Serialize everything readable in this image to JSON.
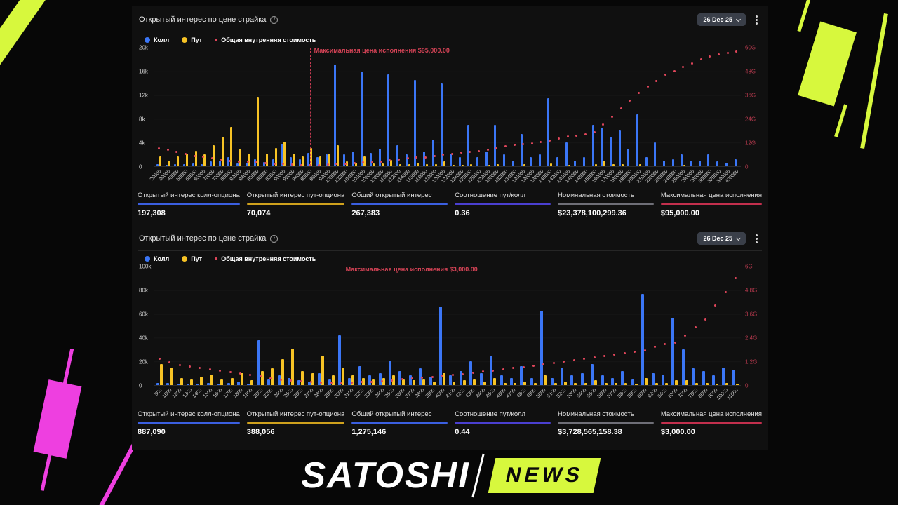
{
  "icons": {
    "info": "i"
  },
  "colors": {
    "call": "#3b76f6",
    "put": "#f7c325",
    "intrinsic": "#e0465a",
    "accent_green": "#d7f83d",
    "accent_magenta": "#ee3fe0"
  },
  "logo": {
    "brand": "SATOSHI",
    "badge": "NEWS"
  },
  "panels": [
    {
      "title": "Открытый интерес по цене страйка",
      "date_selector": "26 Dec 25",
      "legend": [
        {
          "label": "Колл",
          "color": "#3b76f6",
          "icon": "call-dot-icon",
          "shape": "dot"
        },
        {
          "label": "Пут",
          "color": "#f7c325",
          "icon": "put-dot-icon",
          "shape": "dot"
        },
        {
          "label": "Общая внутренняя стоимость",
          "color": "#e0465a",
          "icon": "intrinsic-dot-icon",
          "shape": "small-dot"
        }
      ],
      "stats": [
        {
          "label": "Открытый интерес колл-опциона",
          "value": "197,308",
          "color": "#3b5fe0"
        },
        {
          "label": "Открытый интерес пут-опциона",
          "value": "70,074",
          "color": "#cfa11d"
        },
        {
          "label": "Общий открытый интерес",
          "value": "267,383",
          "color": "#3b5fe0"
        },
        {
          "label": "Соотношение пут/колл",
          "value": "0.36",
          "color": "#4a3fd0"
        },
        {
          "label": "Номинальная стоимость",
          "value": "$23,378,100,299.36",
          "color": "#6e6e77"
        },
        {
          "label": "Максимальная цена исполнения",
          "value": "$95,000.00",
          "color": "#c32f4d"
        }
      ]
    },
    {
      "title": "Открытый интерес по цене страйка",
      "date_selector": "26 Dec 25",
      "legend": [
        {
          "label": "Колл",
          "color": "#3b76f6",
          "icon": "call-dot-icon",
          "shape": "dot"
        },
        {
          "label": "Пут",
          "color": "#f7c325",
          "icon": "put-dot-icon",
          "shape": "dot"
        },
        {
          "label": "Общая внутренняя стоимость",
          "color": "#e0465a",
          "icon": "intrinsic-dot-icon",
          "shape": "small-dot"
        }
      ],
      "stats": [
        {
          "label": "Открытый интерес колл-опциона",
          "value": "887,090",
          "color": "#3b5fe0"
        },
        {
          "label": "Открытый интерес пут-опциона",
          "value": "388,056",
          "color": "#cfa11d"
        },
        {
          "label": "Общий открытый интерес",
          "value": "1,275,146",
          "color": "#3b5fe0"
        },
        {
          "label": "Соотношение пут/колл",
          "value": "0.44",
          "color": "#4a3fd0"
        },
        {
          "label": "Номинальная стоимость",
          "value": "$3,728,565,158.38",
          "color": "#6e6e77"
        },
        {
          "label": "Максимальная цена исполнения",
          "value": "$3,000.00",
          "color": "#c32f4d"
        }
      ]
    }
  ],
  "chart_data": [
    {
      "type": "bar",
      "title": "Открытый интерес по цене страйка (BTC, 26 Dec 25)",
      "categories": [
        "20000",
        "30000",
        "40000",
        "50000",
        "60000",
        "65000",
        "70000",
        "75000",
        "80000",
        "82000",
        "84000",
        "85000",
        "86000",
        "88000",
        "90000",
        "92000",
        "94000",
        "95000",
        "96000",
        "98000",
        "100000",
        "102000",
        "104000",
        "105000",
        "106000",
        "108000",
        "110000",
        "112000",
        "114000",
        "115000",
        "116000",
        "118000",
        "120000",
        "122000",
        "124000",
        "125000",
        "126000",
        "128000",
        "130000",
        "132000",
        "134000",
        "135000",
        "136000",
        "138000",
        "140000",
        "142000",
        "145000",
        "146000",
        "148000",
        "150000",
        "160000",
        "170000",
        "180000",
        "190000",
        "200000",
        "210000",
        "220000",
        "230000",
        "240000",
        "250000",
        "260000",
        "280000",
        "300000",
        "320000",
        "340000",
        "400000"
      ],
      "series": [
        {
          "name": "Колл",
          "type": "bar",
          "axis": "left",
          "color": "#3b76f6",
          "values": [
            300,
            200,
            300,
            400,
            500,
            300,
            800,
            1000,
            1500,
            500,
            600,
            1200,
            700,
            1200,
            3800,
            1500,
            1200,
            2200,
            1500,
            2000,
            17200,
            2000,
            2500,
            16000,
            2200,
            3000,
            15500,
            3500,
            2000,
            14500,
            2500,
            4500,
            14000,
            2000,
            1500,
            7000,
            1500,
            2500,
            7000,
            2000,
            1000,
            5500,
            1500,
            2000,
            11500,
            1500,
            4000,
            1000,
            1500,
            7000,
            6500,
            5000,
            6000,
            3000,
            8800,
            1500,
            4000,
            1000,
            1200,
            2000,
            1000,
            1000,
            2000,
            800,
            600,
            1200
          ]
        },
        {
          "name": "Пут",
          "type": "bar",
          "axis": "left",
          "color": "#f7c325",
          "values": [
            1600,
            1000,
            1600,
            2100,
            2600,
            2000,
            3600,
            5000,
            6600,
            3000,
            2100,
            11600,
            2100,
            3100,
            4100,
            2100,
            1600,
            3100,
            1600,
            2100,
            3600,
            800,
            600,
            1600,
            500,
            500,
            1100,
            400,
            300,
            600,
            300,
            400,
            800,
            200,
            200,
            400,
            150,
            200,
            400,
            150,
            100,
            300,
            100,
            150,
            500,
            100,
            200,
            100,
            100,
            400,
            1000,
            300,
            300,
            150,
            400,
            100,
            150,
            100,
            100,
            200,
            100,
            100,
            150,
            80,
            60,
            100
          ]
        },
        {
          "name": "Общая внутренняя стоимость",
          "type": "scatter",
          "axis": "right",
          "color": "#e0465a",
          "values": [
            9,
            8,
            7,
            6,
            5,
            4.5,
            4,
            3.2,
            2.5,
            2.2,
            2,
            1.8,
            1.6,
            1.2,
            0.9,
            0.6,
            0.45,
            0.38,
            0.42,
            0.6,
            0.9,
            1.2,
            1.5,
            1.7,
            1.9,
            2.3,
            2.8,
            3.3,
            3.8,
            4.1,
            4.4,
            5,
            5.6,
            6.2,
            6.9,
            7.2,
            7.6,
            8.3,
            9,
            9.8,
            10.5,
            10.9,
            11.3,
            12.1,
            12.9,
            13.7,
            14.9,
            15.3,
            16.1,
            17,
            21,
            25,
            29,
            33,
            37,
            40,
            43,
            46,
            48,
            50,
            52,
            54,
            55.5,
            56.5,
            57,
            58
          ]
        }
      ],
      "ylim_left": [
        0,
        20000
      ],
      "ylim_right": [
        0,
        60
      ],
      "left_ticks": [
        "20k",
        "16k",
        "12k",
        "8k",
        "4k",
        "0"
      ],
      "right_ticks": [
        "60G",
        "48G",
        "36G",
        "24G",
        "12G",
        "0"
      ],
      "annotation": {
        "text": "Максимальная цена исполнения $95,000.00",
        "category": "95000"
      },
      "legend_position": "top-left",
      "grid": false
    },
    {
      "type": "bar",
      "title": "Открытый интерес по цене страйка (ETH, 26 Dec 25)",
      "categories": [
        "800",
        "1000",
        "1200",
        "1300",
        "1400",
        "1500",
        "1600",
        "1700",
        "1800",
        "1900",
        "2000",
        "2200",
        "2400",
        "2500",
        "2600",
        "2700",
        "2800",
        "2900",
        "3000",
        "3100",
        "3200",
        "3300",
        "3400",
        "3500",
        "3600",
        "3700",
        "3800",
        "3900",
        "4000",
        "4100",
        "4200",
        "4300",
        "4400",
        "4500",
        "4600",
        "4700",
        "4800",
        "4900",
        "5000",
        "5100",
        "5200",
        "5300",
        "5400",
        "5500",
        "5600",
        "5700",
        "5800",
        "5900",
        "6000",
        "6200",
        "6400",
        "6500",
        "7000",
        "7500",
        "8000",
        "9000",
        "10000",
        "11000"
      ],
      "series": [
        {
          "name": "Колл",
          "type": "bar",
          "axis": "left",
          "color": "#3b76f6",
          "values": [
            2000,
            1500,
            1000,
            500,
            1000,
            2000,
            1000,
            1500,
            3000,
            1000,
            38000,
            5000,
            8000,
            6000,
            4000,
            3000,
            10000,
            5000,
            42000,
            6000,
            16000,
            8000,
            10000,
            20000,
            12000,
            8000,
            14000,
            7000,
            66000,
            8000,
            12000,
            20000,
            10000,
            24000,
            8000,
            6000,
            16000,
            6000,
            63000,
            6000,
            14000,
            8000,
            10000,
            18000,
            8000,
            6000,
            12000,
            5000,
            77000,
            10000,
            8000,
            57000,
            30000,
            14000,
            12000,
            8000,
            15000,
            13000
          ]
        },
        {
          "name": "Пут",
          "type": "bar",
          "axis": "left",
          "color": "#f7c325",
          "values": [
            18000,
            15000,
            6000,
            5000,
            7000,
            9000,
            5000,
            6000,
            10000,
            4000,
            12000,
            14000,
            22000,
            31000,
            12000,
            10000,
            25000,
            8000,
            15000,
            8000,
            6000,
            5000,
            6000,
            8000,
            5000,
            4000,
            5000,
            3000,
            10000,
            3000,
            4000,
            5000,
            3000,
            6000,
            2000,
            2000,
            3000,
            2000,
            8000,
            2000,
            3000,
            2000,
            2000,
            4000,
            2000,
            1500,
            2000,
            1000,
            6000,
            2000,
            1500,
            4000,
            4000,
            2000,
            1500,
            1000,
            1500,
            1000
          ]
        },
        {
          "name": "Общая внутренняя стоимость",
          "type": "scatter",
          "axis": "right",
          "color": "#e0465a",
          "values": [
            1.3,
            1.15,
            1.0,
            0.92,
            0.85,
            0.78,
            0.7,
            0.63,
            0.56,
            0.5,
            0.44,
            0.33,
            0.24,
            0.2,
            0.17,
            0.14,
            0.11,
            0.09,
            0.08,
            0.1,
            0.13,
            0.16,
            0.19,
            0.23,
            0.27,
            0.31,
            0.35,
            0.4,
            0.45,
            0.5,
            0.55,
            0.61,
            0.66,
            0.72,
            0.78,
            0.84,
            0.9,
            0.97,
            1.03,
            1.1,
            1.17,
            1.24,
            1.31,
            1.38,
            1.45,
            1.52,
            1.6,
            1.67,
            1.75,
            1.9,
            2.05,
            2.13,
            2.5,
            2.9,
            3.3,
            4.0,
            4.7,
            5.4
          ]
        }
      ],
      "ylim_left": [
        0,
        100000
      ],
      "ylim_right": [
        0,
        6
      ],
      "left_ticks": [
        "100k",
        "80k",
        "60k",
        "40k",
        "20k",
        "0"
      ],
      "right_ticks": [
        "6G",
        "4.8G",
        "3.6G",
        "2.4G",
        "1.2G",
        "0"
      ],
      "annotation": {
        "text": "Максимальная цена исполнения $3,000.00",
        "category": "3000"
      },
      "legend_position": "top-left",
      "grid": false
    }
  ]
}
